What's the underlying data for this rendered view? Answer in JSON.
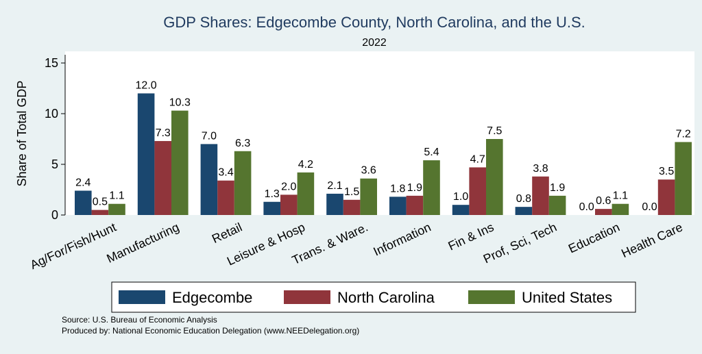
{
  "colors": {
    "background": "#eaf2f3",
    "plot_background": "#ffffff",
    "title": "#1f3a5f",
    "edgecombe": "#1a476f",
    "north_carolina": "#90353b",
    "united_states": "#55752f"
  },
  "notes": {
    "source": "Source: U.S. Bureau of Economic Analysis",
    "produced_by": "Produced by: National Economic Education Delegation (www.NEEDelegation.org)"
  },
  "chart_data": {
    "type": "bar",
    "title": "GDP Shares: Edgecombe County, North Carolina, and the U.S.",
    "subtitle": "2022",
    "xlabel": "",
    "ylabel": "Share of Total GDP",
    "ylim": [
      0,
      16
    ],
    "yticks": [
      0,
      5,
      10,
      15
    ],
    "ytick_labels": [
      "0",
      "5",
      "10",
      "15"
    ],
    "grid": false,
    "legend_position": "bottom",
    "categories": [
      "Ag/For/Fish/Hunt",
      "Manufacturing",
      "Retail",
      "Leisure & Hosp",
      "Trans. & Ware.",
      "Information",
      "Fin & Ins",
      "Prof, Sci, Tech",
      "Education",
      "Health Care"
    ],
    "series": [
      {
        "name": "Edgecombe",
        "values": [
          2.4,
          12.0,
          7.0,
          1.3,
          2.1,
          1.8,
          1.0,
          0.8,
          0.0,
          0.0
        ],
        "labels": [
          "2.4",
          "12.0",
          "7.0",
          "1.3",
          "2.1",
          "1.8",
          "1.0",
          "0.8",
          "0.0",
          "0.0"
        ]
      },
      {
        "name": "North Carolina",
        "values": [
          0.5,
          7.3,
          3.4,
          2.0,
          1.5,
          1.9,
          4.7,
          3.8,
          0.6,
          3.5
        ],
        "labels": [
          "0.5",
          "7.3",
          "3.4",
          "2.0",
          "1.5",
          "1.9",
          "4.7",
          "3.8",
          "0.6",
          "3.5"
        ]
      },
      {
        "name": "United States",
        "values": [
          1.1,
          10.3,
          6.3,
          4.2,
          3.6,
          5.4,
          7.5,
          1.9,
          1.1,
          7.2
        ],
        "labels": [
          "1.1",
          "10.3",
          "6.3",
          "4.2",
          "3.6",
          "5.4",
          "7.5",
          "1.9",
          "1.1",
          "7.2"
        ]
      }
    ]
  }
}
